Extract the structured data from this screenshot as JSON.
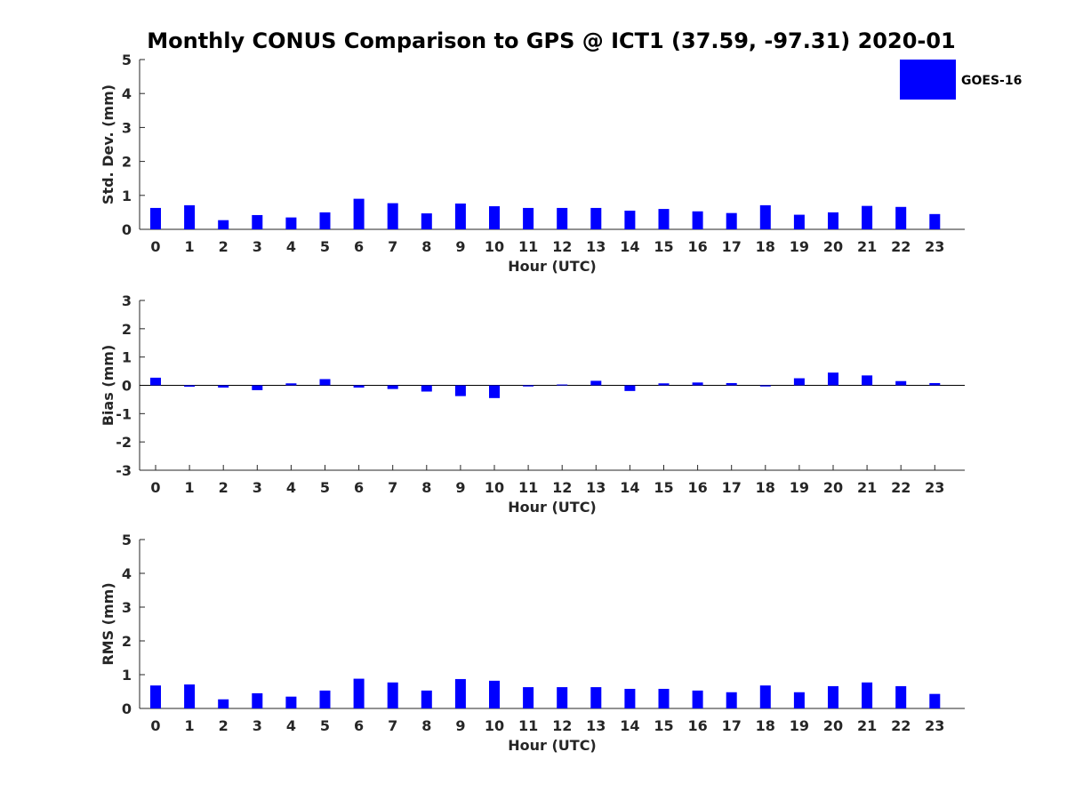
{
  "title": "Monthly CONUS Comparison to GPS @ ICT1 (37.59, -97.31) 2020-01",
  "legend": {
    "label": "GOES-16",
    "color": "#0000ff"
  },
  "colors": {
    "bar": "#0000ff",
    "axis": "#262626",
    "zero_line": "#000000"
  },
  "chart_data": [
    {
      "type": "bar",
      "xlabel": "Hour (UTC)",
      "ylabel": "Std. Dev. (mm)",
      "ylim": [
        0,
        5
      ],
      "yticks": [
        0,
        1,
        2,
        3,
        4,
        5
      ],
      "categories": [
        "0",
        "1",
        "2",
        "3",
        "4",
        "5",
        "6",
        "7",
        "8",
        "9",
        "10",
        "11",
        "12",
        "13",
        "14",
        "15",
        "16",
        "17",
        "18",
        "19",
        "20",
        "21",
        "22",
        "23"
      ],
      "series": [
        {
          "name": "GOES-16",
          "values": [
            0.63,
            0.71,
            0.27,
            0.42,
            0.35,
            0.5,
            0.9,
            0.77,
            0.47,
            0.76,
            0.68,
            0.63,
            0.63,
            0.63,
            0.55,
            0.6,
            0.53,
            0.48,
            0.71,
            0.43,
            0.5,
            0.69,
            0.66,
            0.45
          ]
        }
      ]
    },
    {
      "type": "bar",
      "xlabel": "Hour (UTC)",
      "ylabel": "Bias (mm)",
      "ylim": [
        -3,
        3
      ],
      "yticks": [
        -3,
        -2,
        -1,
        0,
        1,
        2,
        3
      ],
      "categories": [
        "0",
        "1",
        "2",
        "3",
        "4",
        "5",
        "6",
        "7",
        "8",
        "9",
        "10",
        "11",
        "12",
        "13",
        "14",
        "15",
        "16",
        "17",
        "18",
        "19",
        "20",
        "21",
        "22",
        "23"
      ],
      "series": [
        {
          "name": "GOES-16",
          "values": [
            0.27,
            -0.05,
            -0.08,
            -0.17,
            0.07,
            0.22,
            -0.08,
            -0.13,
            -0.22,
            -0.38,
            -0.45,
            -0.04,
            0.03,
            0.16,
            -0.2,
            0.07,
            0.1,
            0.08,
            -0.04,
            0.25,
            0.45,
            0.35,
            0.15,
            0.08
          ]
        }
      ]
    },
    {
      "type": "bar",
      "xlabel": "Hour (UTC)",
      "ylabel": "RMS (mm)",
      "ylim": [
        0,
        5
      ],
      "yticks": [
        0,
        1,
        2,
        3,
        4,
        5
      ],
      "categories": [
        "0",
        "1",
        "2",
        "3",
        "4",
        "5",
        "6",
        "7",
        "8",
        "9",
        "10",
        "11",
        "12",
        "13",
        "14",
        "15",
        "16",
        "17",
        "18",
        "19",
        "20",
        "21",
        "22",
        "23"
      ],
      "series": [
        {
          "name": "GOES-16",
          "values": [
            0.68,
            0.71,
            0.27,
            0.45,
            0.35,
            0.53,
            0.88,
            0.77,
            0.53,
            0.87,
            0.82,
            0.63,
            0.63,
            0.63,
            0.58,
            0.58,
            0.53,
            0.48,
            0.68,
            0.48,
            0.66,
            0.77,
            0.66,
            0.43
          ]
        }
      ]
    }
  ]
}
